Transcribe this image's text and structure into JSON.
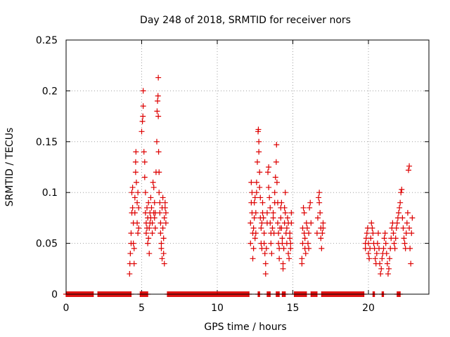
{
  "chart_data": {
    "type": "scatter",
    "title": "Day 248 of 2018, SRMTID for receiver nors",
    "xlabel": "GPS time / hours",
    "ylabel": "SRMTID / TECUs",
    "xlim": [
      0,
      24
    ],
    "ylim": [
      0,
      0.25
    ],
    "xticks": [
      0,
      5,
      10,
      15,
      20
    ],
    "yticks": [
      0,
      0.05,
      0.1,
      0.15,
      0.2,
      0.25
    ],
    "xtick_labels": [
      "0",
      "5",
      "10",
      "15",
      "20"
    ],
    "ytick_labels": [
      "0",
      "0.05",
      "0.1",
      "0.15",
      "0.2",
      "0.25"
    ],
    "grid": true,
    "marker": "+",
    "series_color": "#dd0000",
    "series": [
      {
        "name": "SRMTID",
        "zero_intervals": [
          [
            0.0,
            1.8
          ],
          [
            2.1,
            4.3
          ],
          [
            4.9,
            5.4
          ],
          [
            6.7,
            12.1
          ],
          [
            12.7,
            12.8
          ],
          [
            13.3,
            13.5
          ],
          [
            13.9,
            14.1
          ],
          [
            14.3,
            14.5
          ],
          [
            15.1,
            15.9
          ],
          [
            16.2,
            16.6
          ],
          [
            16.9,
            19.7
          ],
          [
            20.3,
            20.4
          ],
          [
            20.9,
            21.0
          ],
          [
            21.9,
            22.1
          ]
        ],
        "points": [
          [
            4.2,
            0.02
          ],
          [
            4.22,
            0.03
          ],
          [
            4.25,
            0.04
          ],
          [
            4.3,
            0.05
          ],
          [
            4.3,
            0.06
          ],
          [
            4.35,
            0.08
          ],
          [
            4.35,
            0.1
          ],
          [
            4.4,
            0.105
          ],
          [
            4.4,
            0.085
          ],
          [
            4.45,
            0.07
          ],
          [
            4.45,
            0.05
          ],
          [
            4.5,
            0.045
          ],
          [
            4.5,
            0.03
          ],
          [
            4.55,
            0.08
          ],
          [
            4.55,
            0.095
          ],
          [
            4.6,
            0.12
          ],
          [
            4.6,
            0.13
          ],
          [
            4.62,
            0.14
          ],
          [
            4.65,
            0.11
          ],
          [
            4.7,
            0.09
          ],
          [
            4.7,
            0.07
          ],
          [
            4.75,
            0.06
          ],
          [
            4.75,
            0.1
          ],
          [
            4.8,
            0.085
          ],
          [
            4.8,
            0.065
          ],
          [
            5.0,
            0.16
          ],
          [
            5.05,
            0.17
          ],
          [
            5.08,
            0.175
          ],
          [
            5.1,
            0.2
          ],
          [
            5.1,
            0.185
          ],
          [
            5.15,
            0.14
          ],
          [
            5.2,
            0.13
          ],
          [
            5.2,
            0.115
          ],
          [
            5.25,
            0.1
          ],
          [
            5.25,
            0.08
          ],
          [
            5.3,
            0.07
          ],
          [
            5.3,
            0.06
          ],
          [
            5.35,
            0.085
          ],
          [
            5.35,
            0.065
          ],
          [
            5.4,
            0.05
          ],
          [
            5.4,
            0.075
          ],
          [
            5.45,
            0.09
          ],
          [
            5.45,
            0.055
          ],
          [
            5.5,
            0.04
          ],
          [
            5.5,
            0.065
          ],
          [
            5.55,
            0.07
          ],
          [
            5.55,
            0.08
          ],
          [
            5.6,
            0.075
          ],
          [
            5.6,
            0.095
          ],
          [
            5.65,
            0.085
          ],
          [
            5.7,
            0.06
          ],
          [
            5.7,
            0.07
          ],
          [
            5.75,
            0.11
          ],
          [
            5.8,
            0.105
          ],
          [
            5.8,
            0.08
          ],
          [
            5.85,
            0.09
          ],
          [
            5.85,
            0.075
          ],
          [
            5.9,
            0.065
          ],
          [
            5.9,
            0.08
          ],
          [
            5.95,
            0.12
          ],
          [
            6.0,
            0.15
          ],
          [
            6.02,
            0.18
          ],
          [
            6.05,
            0.19
          ],
          [
            6.08,
            0.195
          ],
          [
            6.1,
            0.213
          ],
          [
            6.1,
            0.175
          ],
          [
            6.12,
            0.14
          ],
          [
            6.15,
            0.12
          ],
          [
            6.15,
            0.1
          ],
          [
            6.2,
            0.09
          ],
          [
            6.2,
            0.08
          ],
          [
            6.25,
            0.07
          ],
          [
            6.25,
            0.06
          ],
          [
            6.3,
            0.05
          ],
          [
            6.3,
            0.045
          ],
          [
            6.35,
            0.035
          ],
          [
            6.35,
            0.085
          ],
          [
            6.4,
            0.095
          ],
          [
            6.4,
            0.065
          ],
          [
            6.45,
            0.055
          ],
          [
            6.45,
            0.04
          ],
          [
            6.5,
            0.03
          ],
          [
            6.5,
            0.075
          ],
          [
            6.55,
            0.085
          ],
          [
            6.55,
            0.09
          ],
          [
            6.6,
            0.08
          ],
          [
            6.6,
            0.07
          ],
          [
            12.2,
            0.05
          ],
          [
            12.2,
            0.07
          ],
          [
            12.25,
            0.09
          ],
          [
            12.25,
            0.11
          ],
          [
            12.3,
            0.1
          ],
          [
            12.3,
            0.08
          ],
          [
            12.35,
            0.06
          ],
          [
            12.35,
            0.035
          ],
          [
            12.4,
            0.045
          ],
          [
            12.4,
            0.065
          ],
          [
            12.45,
            0.075
          ],
          [
            12.45,
            0.09
          ],
          [
            12.5,
            0.095
          ],
          [
            12.5,
            0.055
          ],
          [
            12.55,
            0.06
          ],
          [
            12.55,
            0.08
          ],
          [
            12.6,
            0.1
          ],
          [
            12.6,
            0.11
          ],
          [
            12.65,
            0.13
          ],
          [
            12.7,
            0.16
          ],
          [
            12.72,
            0.162
          ],
          [
            12.75,
            0.15
          ],
          [
            12.75,
            0.14
          ],
          [
            12.8,
            0.12
          ],
          [
            12.8,
            0.105
          ],
          [
            12.85,
            0.095
          ],
          [
            12.85,
            0.075
          ],
          [
            12.9,
            0.065
          ],
          [
            12.9,
            0.05
          ],
          [
            12.95,
            0.045
          ],
          [
            12.95,
            0.07
          ],
          [
            13.0,
            0.08
          ],
          [
            13.0,
            0.09
          ],
          [
            13.05,
            0.075
          ],
          [
            13.1,
            0.06
          ],
          [
            13.1,
            0.05
          ],
          [
            13.15,
            0.04
          ],
          [
            13.2,
            0.03
          ],
          [
            13.2,
            0.02
          ],
          [
            13.25,
            0.045
          ],
          [
            13.3,
            0.07
          ],
          [
            13.3,
            0.08
          ],
          [
            13.35,
            0.12
          ],
          [
            13.4,
            0.125
          ],
          [
            13.4,
            0.105
          ],
          [
            13.45,
            0.095
          ],
          [
            13.5,
            0.085
          ],
          [
            13.5,
            0.07
          ],
          [
            13.55,
            0.06
          ],
          [
            13.55,
            0.05
          ],
          [
            13.6,
            0.04
          ],
          [
            13.65,
            0.065
          ],
          [
            13.7,
            0.08
          ],
          [
            13.7,
            0.075
          ],
          [
            13.75,
            0.06
          ],
          [
            13.8,
            0.09
          ],
          [
            13.8,
            0.1
          ],
          [
            13.85,
            0.115
          ],
          [
            13.9,
            0.13
          ],
          [
            13.92,
            0.147
          ],
          [
            13.95,
            0.11
          ],
          [
            14.0,
            0.09
          ],
          [
            14.0,
            0.07
          ],
          [
            14.05,
            0.06
          ],
          [
            14.05,
            0.05
          ],
          [
            14.1,
            0.045
          ],
          [
            14.1,
            0.035
          ],
          [
            14.15,
            0.065
          ],
          [
            14.2,
            0.075
          ],
          [
            14.2,
            0.085
          ],
          [
            14.25,
            0.09
          ],
          [
            14.25,
            0.065
          ],
          [
            14.3,
            0.055
          ],
          [
            14.3,
            0.05
          ],
          [
            14.35,
            0.03
          ],
          [
            14.35,
            0.025
          ],
          [
            14.4,
            0.045
          ],
          [
            14.45,
            0.07
          ],
          [
            14.45,
            0.085
          ],
          [
            14.5,
            0.1
          ],
          [
            14.5,
            0.08
          ],
          [
            14.55,
            0.06
          ],
          [
            14.6,
            0.05
          ],
          [
            14.6,
            0.065
          ],
          [
            14.65,
            0.075
          ],
          [
            14.7,
            0.07
          ],
          [
            14.7,
            0.04
          ],
          [
            14.75,
            0.035
          ],
          [
            14.8,
            0.055
          ],
          [
            14.8,
            0.06
          ],
          [
            14.85,
            0.05
          ],
          [
            14.85,
            0.045
          ],
          [
            14.9,
            0.07
          ],
          [
            14.9,
            0.08
          ],
          [
            15.6,
            0.03
          ],
          [
            15.6,
            0.035
          ],
          [
            15.65,
            0.05
          ],
          [
            15.65,
            0.065
          ],
          [
            15.7,
            0.085
          ],
          [
            15.75,
            0.08
          ],
          [
            15.75,
            0.06
          ],
          [
            15.8,
            0.055
          ],
          [
            15.8,
            0.045
          ],
          [
            15.85,
            0.04
          ],
          [
            15.9,
            0.07
          ],
          [
            15.95,
            0.065
          ],
          [
            16.0,
            0.05
          ],
          [
            16.05,
            0.045
          ],
          [
            16.05,
            0.06
          ],
          [
            16.1,
            0.085
          ],
          [
            16.15,
            0.09
          ],
          [
            16.2,
            0.07
          ],
          [
            16.6,
            0.06
          ],
          [
            16.65,
            0.075
          ],
          [
            16.7,
            0.095
          ],
          [
            16.75,
            0.1
          ],
          [
            16.75,
            0.09
          ],
          [
            16.8,
            0.08
          ],
          [
            16.85,
            0.065
          ],
          [
            16.85,
            0.055
          ],
          [
            16.9,
            0.045
          ],
          [
            16.95,
            0.06
          ],
          [
            17.0,
            0.07
          ],
          [
            17.0,
            0.065
          ],
          [
            19.8,
            0.045
          ],
          [
            19.8,
            0.05
          ],
          [
            19.85,
            0.055
          ],
          [
            19.9,
            0.06
          ],
          [
            19.95,
            0.065
          ],
          [
            20.0,
            0.05
          ],
          [
            20.0,
            0.04
          ],
          [
            20.05,
            0.035
          ],
          [
            20.1,
            0.045
          ],
          [
            20.15,
            0.055
          ],
          [
            20.2,
            0.07
          ],
          [
            20.25,
            0.065
          ],
          [
            20.3,
            0.06
          ],
          [
            20.35,
            0.05
          ],
          [
            20.4,
            0.045
          ],
          [
            20.45,
            0.035
          ],
          [
            20.5,
            0.03
          ],
          [
            20.55,
            0.04
          ],
          [
            20.6,
            0.05
          ],
          [
            20.65,
            0.06
          ],
          [
            20.7,
            0.045
          ],
          [
            20.75,
            0.03
          ],
          [
            20.8,
            0.02
          ],
          [
            20.85,
            0.025
          ],
          [
            20.9,
            0.035
          ],
          [
            20.95,
            0.04
          ],
          [
            21.0,
            0.045
          ],
          [
            21.05,
            0.055
          ],
          [
            21.1,
            0.06
          ],
          [
            21.15,
            0.05
          ],
          [
            21.2,
            0.04
          ],
          [
            21.25,
            0.03
          ],
          [
            21.3,
            0.02
          ],
          [
            21.35,
            0.025
          ],
          [
            21.4,
            0.035
          ],
          [
            21.45,
            0.045
          ],
          [
            21.5,
            0.055
          ],
          [
            21.55,
            0.065
          ],
          [
            21.6,
            0.07
          ],
          [
            21.65,
            0.06
          ],
          [
            21.7,
            0.05
          ],
          [
            21.75,
            0.045
          ],
          [
            21.8,
            0.055
          ],
          [
            21.85,
            0.065
          ],
          [
            21.9,
            0.07
          ],
          [
            21.95,
            0.075
          ],
          [
            22.0,
            0.08
          ],
          [
            22.05,
            0.085
          ],
          [
            22.1,
            0.09
          ],
          [
            22.15,
            0.1
          ],
          [
            22.2,
            0.103
          ],
          [
            22.25,
            0.075
          ],
          [
            22.3,
            0.065
          ],
          [
            22.35,
            0.055
          ],
          [
            22.4,
            0.05
          ],
          [
            22.45,
            0.045
          ],
          [
            22.5,
            0.06
          ],
          [
            22.55,
            0.07
          ],
          [
            22.6,
            0.08
          ],
          [
            22.65,
            0.122
          ],
          [
            22.7,
            0.126
          ],
          [
            22.7,
            0.065
          ],
          [
            22.75,
            0.045
          ],
          [
            22.8,
            0.03
          ],
          [
            22.85,
            0.06
          ],
          [
            22.9,
            0.075
          ]
        ]
      }
    ]
  }
}
